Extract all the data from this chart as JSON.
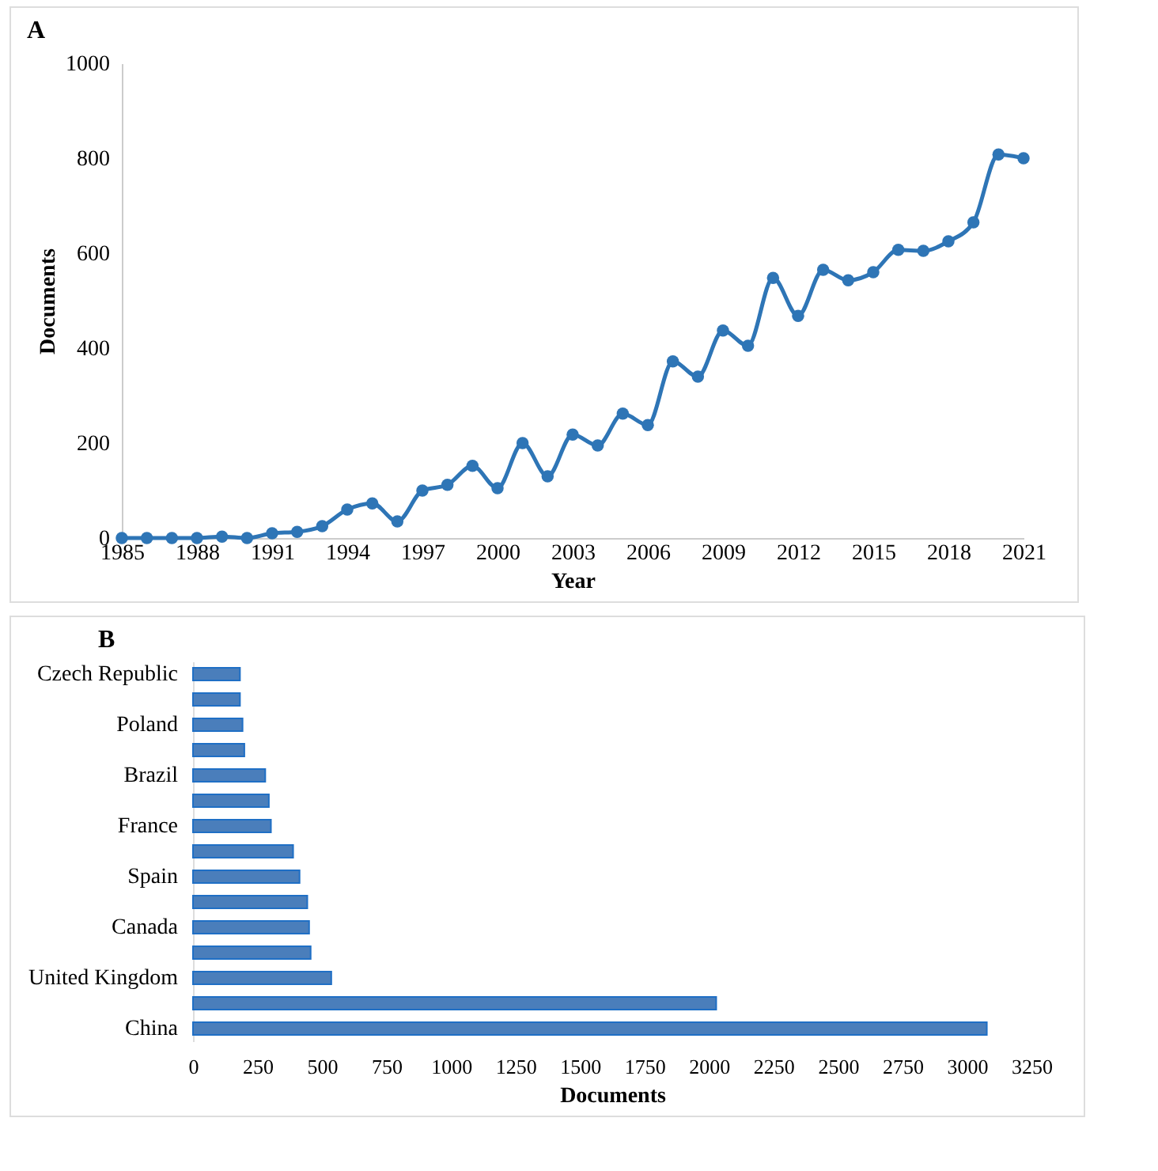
{
  "chart_data": [
    {
      "type": "line",
      "annotations": [
        "A"
      ],
      "xlabel": "Year",
      "ylabel": "Documents",
      "x": [
        1985,
        1986,
        1987,
        1988,
        1989,
        1990,
        1991,
        1992,
        1993,
        1994,
        1995,
        1996,
        1997,
        1998,
        1999,
        2000,
        2001,
        2002,
        2003,
        2004,
        2005,
        2006,
        2007,
        2008,
        2009,
        2010,
        2011,
        2012,
        2013,
        2014,
        2015,
        2016,
        2017,
        2018,
        2019,
        2020,
        2021
      ],
      "series": [
        {
          "color": "#2e75b6",
          "values": [
            0,
            0,
            0,
            0,
            3,
            0,
            10,
            13,
            25,
            60,
            73,
            35,
            100,
            112,
            152,
            105,
            200,
            130,
            218,
            195,
            262,
            238,
            372,
            340,
            437,
            405,
            548,
            468,
            565,
            543,
            560,
            607,
            605,
            625,
            665,
            808,
            800
          ]
        }
      ],
      "xlim": [
        1985,
        2021
      ],
      "xticks": [
        1985,
        1988,
        1991,
        1994,
        1997,
        2000,
        2003,
        2006,
        2009,
        2012,
        2015,
        2018,
        2021
      ],
      "ylim": [
        0,
        1000
      ],
      "yticks": [
        0,
        200,
        400,
        600,
        800,
        1000
      ],
      "marker": "circle",
      "grid": false
    },
    {
      "type": "bar",
      "orientation": "horizontal",
      "annotations": [
        "B"
      ],
      "xlabel": "Documents",
      "categories": [
        "Czech Republic",
        null,
        "Poland",
        null,
        "Brazil",
        null,
        "France",
        null,
        "Spain",
        null,
        "Canada",
        null,
        "United Kingdom",
        null,
        "China"
      ],
      "series": [
        {
          "color": "#4a7ebb",
          "values": [
            182,
            182,
            192,
            199,
            280,
            294,
            302,
            388,
            413,
            443,
            450,
            456,
            536,
            2028,
            3077
          ]
        }
      ],
      "xlim": [
        0,
        3250
      ],
      "xticks": [
        0,
        250,
        500,
        750,
        1000,
        1250,
        1500,
        1750,
        2000,
        2250,
        2500,
        2750,
        3000,
        3250
      ],
      "grid": false
    }
  ]
}
